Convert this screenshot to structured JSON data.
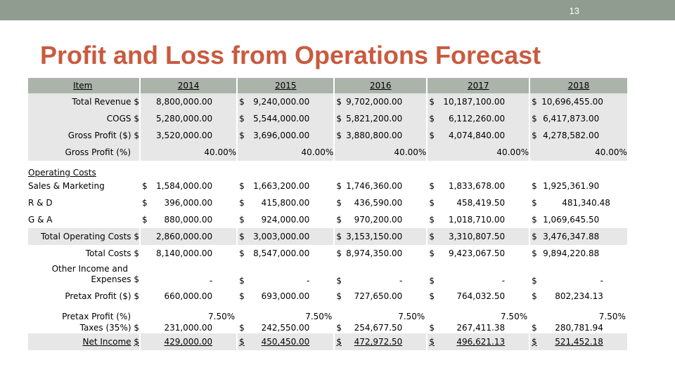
{
  "slide_number": "13",
  "title": "Profit and Loss from Operations Forecast",
  "header": {
    "item": "Item",
    "years": [
      "2014",
      "2015",
      "2016",
      "2017",
      "2018"
    ]
  },
  "rows": {
    "total_revenue": {
      "label": "Total Revenue",
      "values": [
        "8,800,000.00",
        "9,240,000.00",
        "9,702,000.00",
        "10,187,100.00",
        "10,696,455.00"
      ]
    },
    "cogs": {
      "label": "COGS",
      "values": [
        "5,280,000.00",
        "5,544,000.00",
        "5,821,200.00",
        "6,112,260.00",
        "6,417,873.00"
      ]
    },
    "gross_profit": {
      "label": "Gross Profit ($)",
      "values": [
        "3,520,000.00",
        "3,696,000.00",
        "3,880,800.00",
        "4,074,840.00",
        "4,278,582.00"
      ]
    },
    "gross_profit_pct": {
      "label": "Gross Profit (%)",
      "values": [
        "40.00%",
        "40.00%",
        "40.00%",
        "40.00%",
        "40.00%"
      ]
    },
    "operating_costs": {
      "label": "Operating Costs"
    },
    "sales_marketing": {
      "label": "Sales & Marketing",
      "values": [
        "1,584,000.00",
        "1,663,200.00",
        "1,746,360.00",
        "1,833,678.00",
        "1,925,361.90"
      ]
    },
    "rd": {
      "label": "R & D",
      "values": [
        "396,000.00",
        "415,800.00",
        "436,590.00",
        "458,419.50",
        "481,340.48"
      ]
    },
    "ga": {
      "label": "G & A",
      "values": [
        "880,000.00",
        "924,000.00",
        "970,200.00",
        "1,018,710.00",
        "1,069,645.50"
      ]
    },
    "total_operating_costs": {
      "label": "Total Operating Costs",
      "values": [
        "2,860,000.00",
        "3,003,000.00",
        "3,153,150.00",
        "3,310,807.50",
        "3,476,347.88"
      ]
    },
    "total_costs": {
      "label": "Total Costs",
      "values": [
        "8,140,000.00",
        "8,547,000.00",
        "8,974,350.00",
        "9,423,067.50",
        "9,894,220.88"
      ]
    },
    "other_income": {
      "label_line1": "Other Income and",
      "label_line2": "Expenses",
      "values": [
        "-",
        "-",
        "-",
        "-",
        "-"
      ]
    },
    "pretax_profit": {
      "label": "Pretax Profit ($)",
      "values": [
        "660,000.00",
        "693,000.00",
        "727,650.00",
        "764,032.50",
        "802,234.13"
      ]
    },
    "pretax_profit_pct": {
      "label": "Pretax Profit (%)",
      "values": [
        "7.50%",
        "7.50%",
        "7.50%",
        "7.50%",
        "7.50%"
      ]
    },
    "taxes": {
      "label": "Taxes (35%)",
      "values": [
        "231,000.00",
        "242,550.00",
        "254,677.50",
        "267,411.38",
        "280,781.94"
      ]
    },
    "net_income": {
      "label": "Net Income",
      "values": [
        "429,000.00",
        "450,450.00",
        "472,972.50",
        "496,621.13",
        "521,452.18"
      ]
    }
  },
  "currency_symbol": "$",
  "colors": {
    "top_bar": "#919c90",
    "title": "#c85b40",
    "header_bg": "#abb3aa",
    "row_bg": "#e7e7e7"
  }
}
